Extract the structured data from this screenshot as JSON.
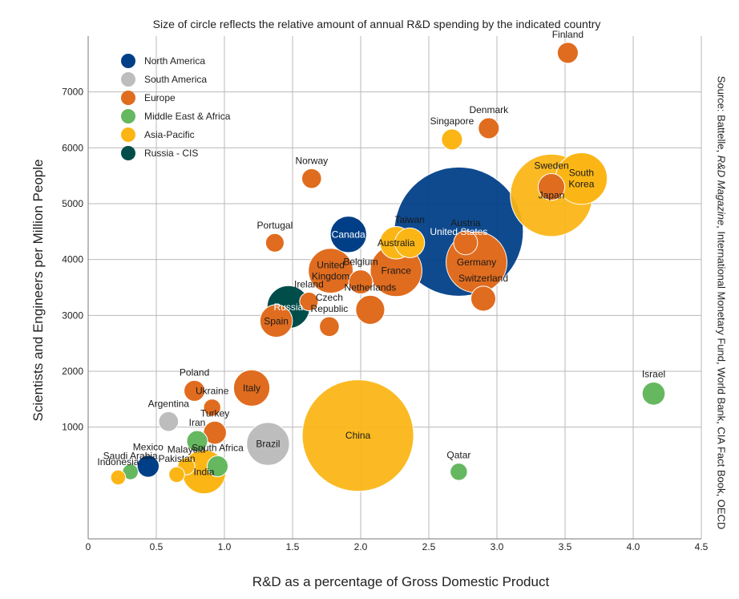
{
  "chart_data": {
    "type": "scatter",
    "subtitle": "Size of circle reflects the relative amount of annual R&D spending by the indicated country",
    "xlabel": "R&D as a percentage of Gross Domestic Product",
    "ylabel": "Scientists and Engineers per Million People",
    "source": {
      "prefix": "Source:  Battelle, ",
      "italic": "R&D Magazine",
      "suffix": ", International Monetary Fund, World Bank, CIA Fact Book, OECD"
    },
    "xlim": [
      0,
      4.5
    ],
    "ylim": [
      -1000,
      8000
    ],
    "x_ticks": [
      {
        "value": 0,
        "label": "0"
      },
      {
        "value": 0.5,
        "label": "0.5"
      },
      {
        "value": 1.0,
        "label": "1.0"
      },
      {
        "value": 1.5,
        "label": "1.5"
      },
      {
        "value": 2.0,
        "label": "2.0"
      },
      {
        "value": 2.5,
        "label": "2.5"
      },
      {
        "value": 3.0,
        "label": "3.0"
      },
      {
        "value": 3.5,
        "label": "3.5"
      },
      {
        "value": 4.0,
        "label": "4.0"
      },
      {
        "value": 4.5,
        "label": "4.5"
      }
    ],
    "y_ticks": [
      {
        "value": 1000,
        "label": "1000"
      },
      {
        "value": 2000,
        "label": "2000"
      },
      {
        "value": 3000,
        "label": "3000"
      },
      {
        "value": 4000,
        "label": "4000"
      },
      {
        "value": 5000,
        "label": "5000"
      },
      {
        "value": 6000,
        "label": "6000"
      },
      {
        "value": 7000,
        "label": "7000"
      }
    ],
    "grid": true,
    "legend_position": "top-left",
    "regions": [
      {
        "key": "na",
        "name": "North America",
        "color": "#003f87"
      },
      {
        "key": "sa",
        "name": "South America",
        "color": "#bdbdbd"
      },
      {
        "key": "eu",
        "name": "Europe",
        "color": "#e06c1f"
      },
      {
        "key": "mea",
        "name": "Middle East & Africa",
        "color": "#65b85f"
      },
      {
        "key": "ap",
        "name": "Asia-Pacific",
        "color": "#fbb615"
      },
      {
        "key": "ru",
        "name": "Russia - CIS",
        "color": "#004d4a"
      }
    ],
    "points": [
      {
        "label": "United States",
        "region": "na",
        "x": 2.72,
        "y": 4500,
        "size": 405
      },
      {
        "label": "China",
        "region": "ap",
        "x": 1.98,
        "y": 850,
        "size": 300
      },
      {
        "label": "Japan",
        "region": "ap",
        "x": 3.4,
        "y": 5150,
        "size": 160
      },
      {
        "label": "Germany",
        "region": "eu",
        "x": 2.85,
        "y": 3950,
        "size": 85
      },
      {
        "label": "South\nKorea",
        "region": "ap",
        "x": 3.62,
        "y": 5450,
        "size": 60
      },
      {
        "label": "France",
        "region": "eu",
        "x": 2.26,
        "y": 3800,
        "size": 60
      },
      {
        "label": "United\nKingdom",
        "region": "eu",
        "x": 1.78,
        "y": 3800,
        "size": 44
      },
      {
        "label": "India",
        "region": "ap",
        "x": 0.85,
        "y": 200,
        "size": 42
      },
      {
        "label": "Russia",
        "region": "ru",
        "x": 1.47,
        "y": 3150,
        "size": 40
      },
      {
        "label": "Brazil",
        "region": "sa",
        "x": 1.32,
        "y": 700,
        "size": 40
      },
      {
        "label": "Italy",
        "region": "eu",
        "x": 1.2,
        "y": 1700,
        "size": 28
      },
      {
        "label": "Canada",
        "region": "na",
        "x": 1.91,
        "y": 4450,
        "size": 28
      },
      {
        "label": "Spain",
        "region": "eu",
        "x": 1.38,
        "y": 2900,
        "size": 22
      },
      {
        "label": "Australia",
        "region": "ap",
        "x": 2.26,
        "y": 4300,
        "size": 22
      },
      {
        "label": "Taiwan",
        "region": "ap",
        "x": 2.36,
        "y": 4300,
        "size": 18
      },
      {
        "label": "Netherlands",
        "region": "eu",
        "x": 2.07,
        "y": 3100,
        "size": 17
      },
      {
        "label": "Sweden",
        "region": "eu",
        "x": 3.4,
        "y": 5300,
        "size": 14
      },
      {
        "label": "Switzerland",
        "region": "eu",
        "x": 2.9,
        "y": 3300,
        "size": 12
      },
      {
        "label": "Austria",
        "region": "eu",
        "x": 2.77,
        "y": 4300,
        "size": 11
      },
      {
        "label": "Belgium",
        "region": "eu",
        "x": 2.0,
        "y": 3600,
        "size": 11
      },
      {
        "label": "Israel",
        "region": "mea",
        "x": 4.15,
        "y": 1600,
        "size": 10
      },
      {
        "label": "Turkey",
        "region": "eu",
        "x": 0.93,
        "y": 900,
        "size": 10
      },
      {
        "label": "Finland",
        "region": "eu",
        "x": 3.52,
        "y": 7700,
        "size": 8
      },
      {
        "label": "Denmark",
        "region": "eu",
        "x": 2.94,
        "y": 6350,
        "size": 8
      },
      {
        "label": "Singapore",
        "region": "ap",
        "x": 2.67,
        "y": 6150,
        "size": 8
      },
      {
        "label": "Norway",
        "region": "eu",
        "x": 1.64,
        "y": 5450,
        "size": 7
      },
      {
        "label": "Poland",
        "region": "eu",
        "x": 0.78,
        "y": 1650,
        "size": 8
      },
      {
        "label": "Mexico",
        "region": "na",
        "x": 0.44,
        "y": 300,
        "size": 9
      },
      {
        "label": "Iran",
        "region": "mea",
        "x": 0.8,
        "y": 750,
        "size": 8
      },
      {
        "label": "South Africa",
        "region": "mea",
        "x": 0.95,
        "y": 300,
        "size": 8
      },
      {
        "label": "Argentina",
        "region": "sa",
        "x": 0.59,
        "y": 1100,
        "size": 7
      },
      {
        "label": "Czech\nRepublic",
        "region": "eu",
        "x": 1.77,
        "y": 2800,
        "size": 7
      },
      {
        "label": "Portugal",
        "region": "eu",
        "x": 1.37,
        "y": 4300,
        "size": 6
      },
      {
        "label": "Ireland",
        "region": "eu",
        "x": 1.62,
        "y": 3250,
        "size": 6
      },
      {
        "label": "Ukraine",
        "region": "eu",
        "x": 0.91,
        "y": 1350,
        "size": 5
      },
      {
        "label": "Malaysia",
        "region": "ap",
        "x": 0.72,
        "y": 300,
        "size": 5
      },
      {
        "label": "Qatar",
        "region": "mea",
        "x": 2.72,
        "y": 200,
        "size": 5
      },
      {
        "label": "Saudi Arabia",
        "region": "mea",
        "x": 0.31,
        "y": 200,
        "size": 4
      },
      {
        "label": "Pakistan",
        "region": "ap",
        "x": 0.65,
        "y": 150,
        "size": 4
      },
      {
        "label": "Indonesia",
        "region": "ap",
        "x": 0.22,
        "y": 100,
        "size": 3.5
      }
    ]
  }
}
